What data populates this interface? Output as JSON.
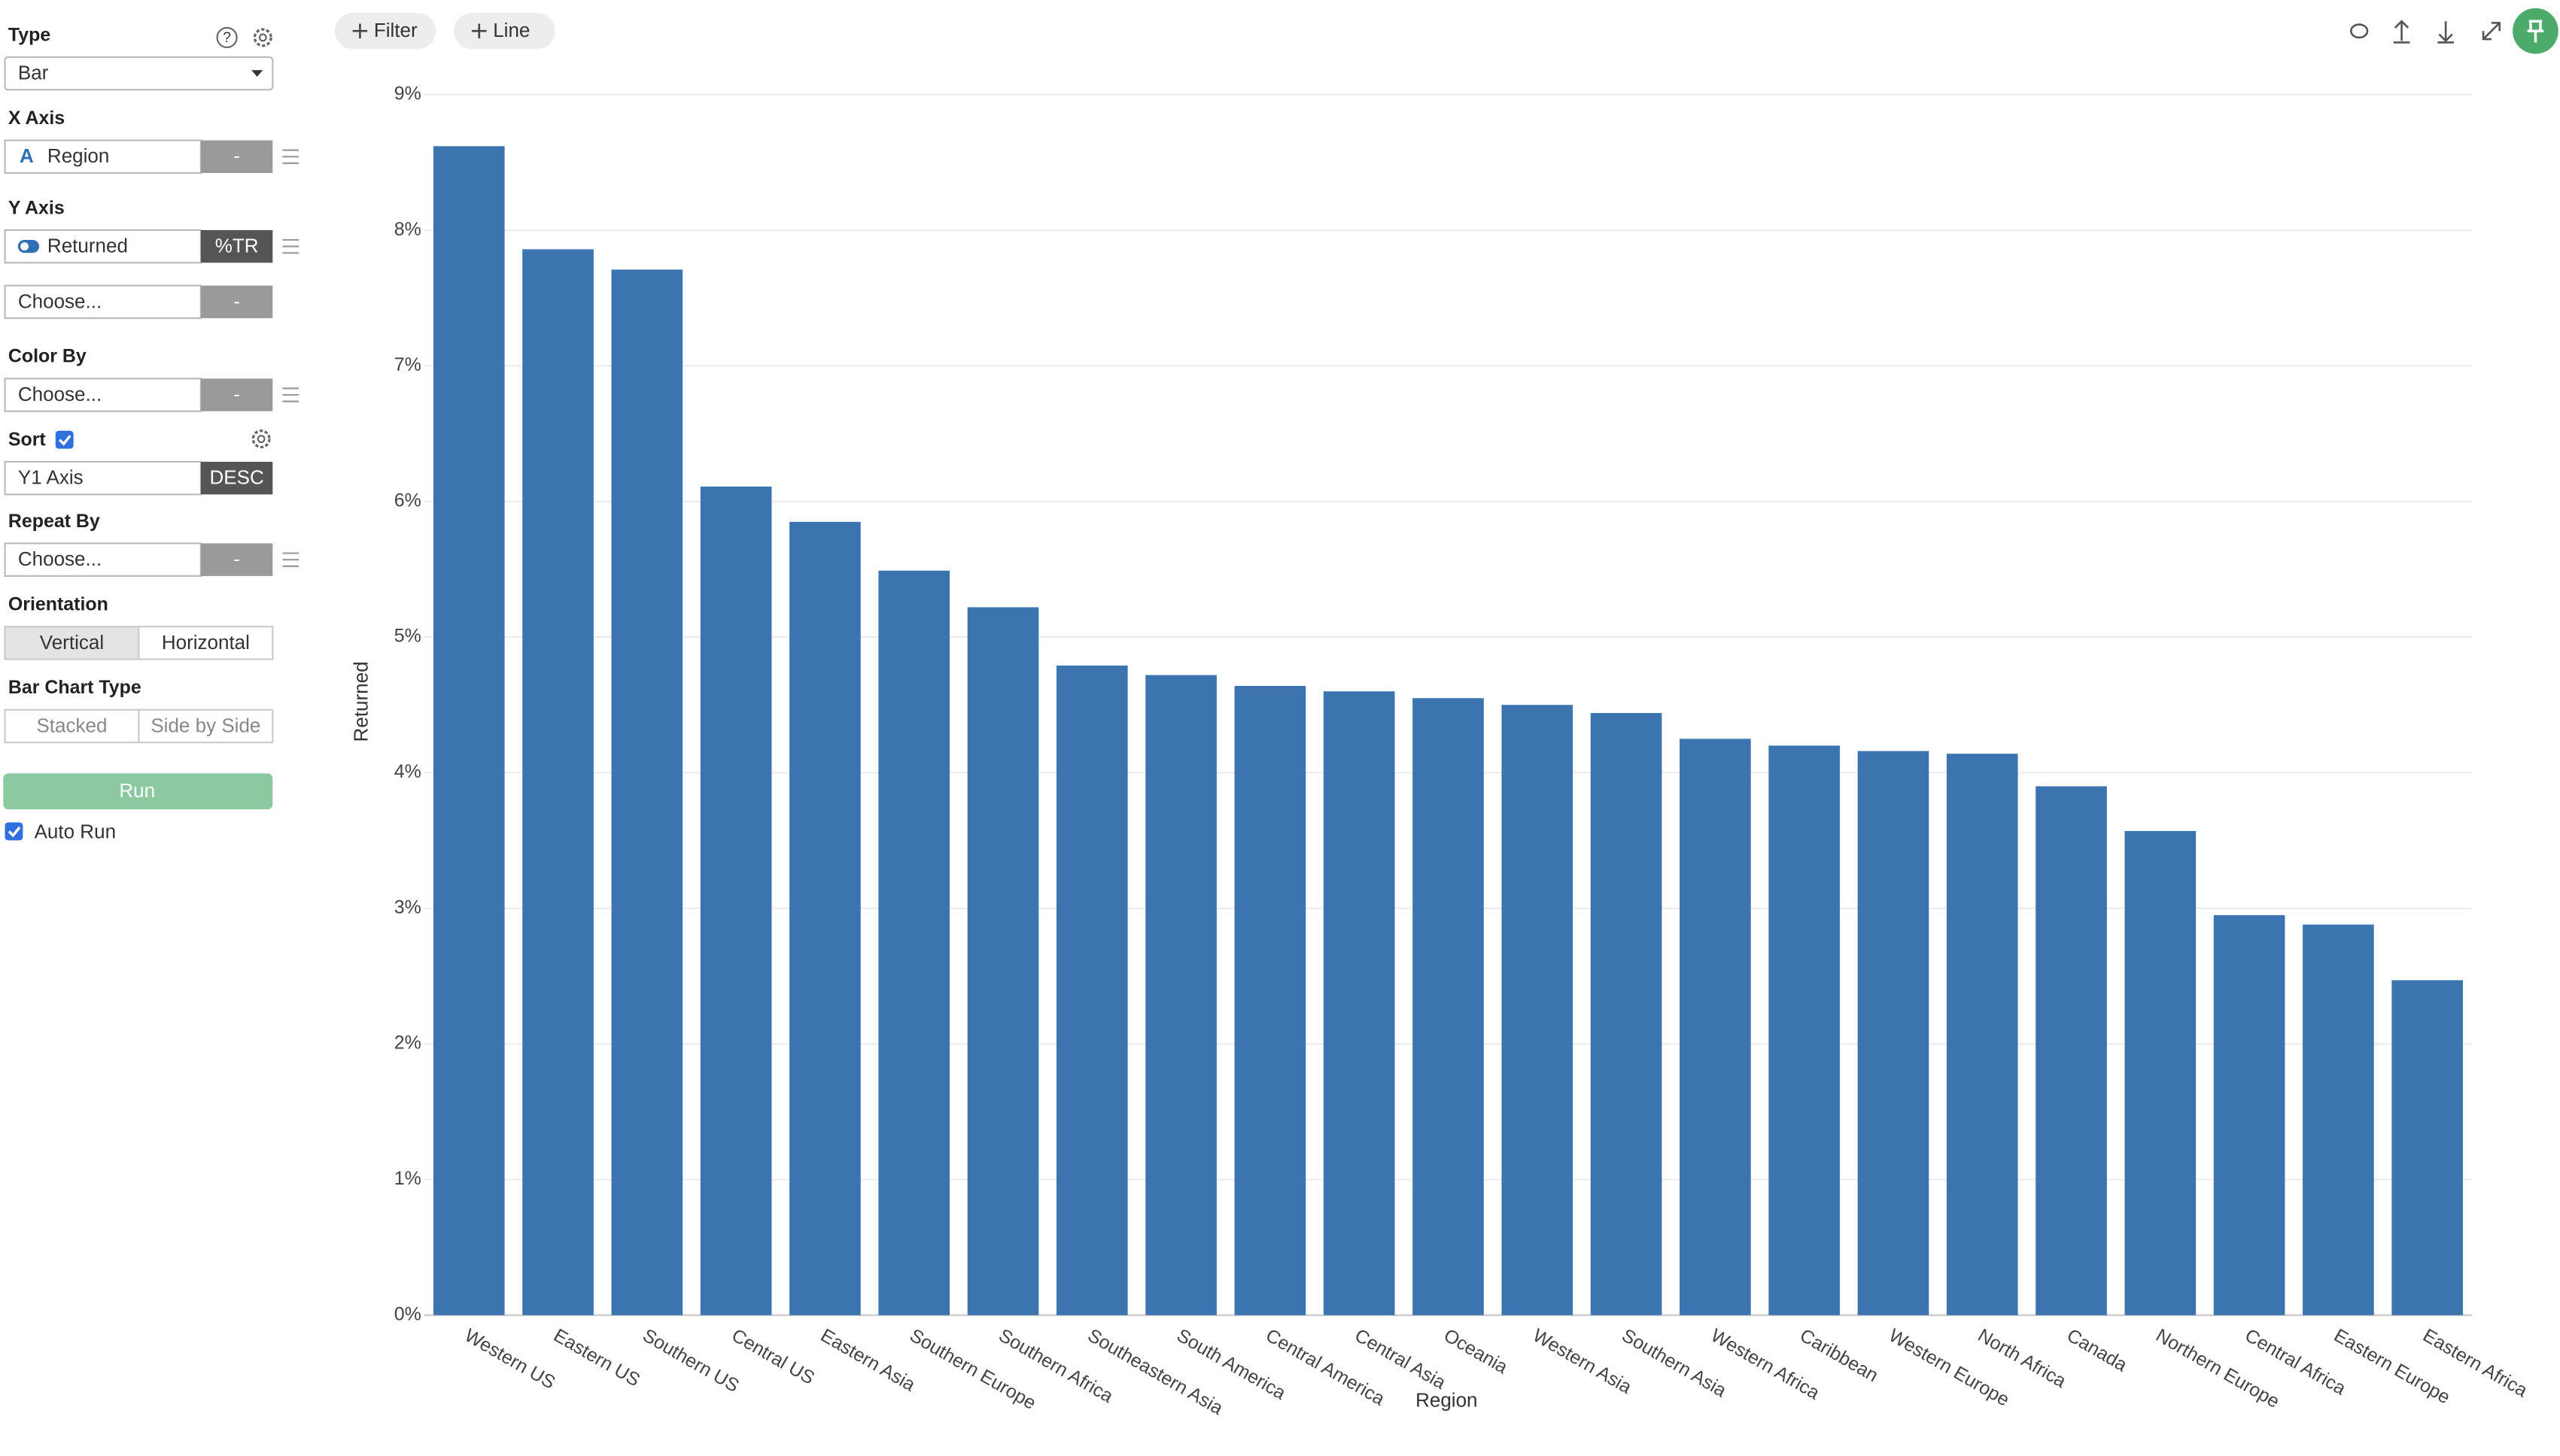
{
  "sidebar": {
    "type_label": "Type",
    "type_value": "Bar",
    "x_axis_label": "X Axis",
    "x_axis_field": "Region",
    "x_axis_agg": "-",
    "y_axis_label": "Y Axis",
    "y_axis_field": "Returned",
    "y_axis_agg": "%TR",
    "y_axis2_field": "Choose...",
    "y_axis2_agg": "-",
    "color_by_label": "Color By",
    "color_by_field": "Choose...",
    "color_by_agg": "-",
    "sort_label": "Sort",
    "sort_field": "Y1 Axis",
    "sort_order": "DESC",
    "repeat_by_label": "Repeat By",
    "repeat_by_field": "Choose...",
    "repeat_by_agg": "-",
    "orientation_label": "Orientation",
    "orientation_options": [
      "Vertical",
      "Horizontal"
    ],
    "bar_type_label": "Bar Chart Type",
    "bar_type_options": [
      "Stacked",
      "Side by Side"
    ],
    "run": "Run",
    "auto_run": "Auto Run"
  },
  "toolbar": {
    "buttons": [
      "Filter",
      "Line"
    ]
  },
  "chart_data": {
    "type": "bar",
    "x_label": "Region",
    "y_label": "Returned",
    "categories": [
      "Western US",
      "Eastern US",
      "Southern US",
      "Central US",
      "Eastern Asia",
      "Southern Europe",
      "Southern Africa",
      "Southeastern Asia",
      "South America",
      "Central America",
      "Central Asia",
      "Oceania",
      "Western Asia",
      "Southern Asia",
      "Western Africa",
      "Caribbean",
      "Western Europe",
      "North Africa",
      "Canada",
      "Northern Europe",
      "Central Africa",
      "Eastern Europe",
      "Eastern Africa"
    ],
    "values": [
      8.62,
      7.86,
      7.71,
      6.11,
      5.85,
      5.49,
      5.22,
      4.79,
      4.72,
      4.64,
      4.6,
      4.55,
      4.5,
      4.44,
      4.25,
      4.2,
      4.16,
      4.14,
      3.9,
      3.57,
      2.95,
      2.88,
      2.47
    ],
    "color": "#3b74ae",
    "ylim": [
      0,
      9
    ],
    "yticks": [
      {
        "value": 0,
        "label": "0%"
      },
      {
        "value": 1,
        "label": "1%"
      },
      {
        "value": 2,
        "label": "2%"
      },
      {
        "value": 3,
        "label": "3%"
      },
      {
        "value": 4,
        "label": "4%"
      },
      {
        "value": 5,
        "label": "5%"
      },
      {
        "value": 6,
        "label": "6%"
      },
      {
        "value": 7,
        "label": "7%"
      },
      {
        "value": 8,
        "label": "8%"
      },
      {
        "value": 9,
        "label": "9%"
      }
    ],
    "grid": true
  }
}
